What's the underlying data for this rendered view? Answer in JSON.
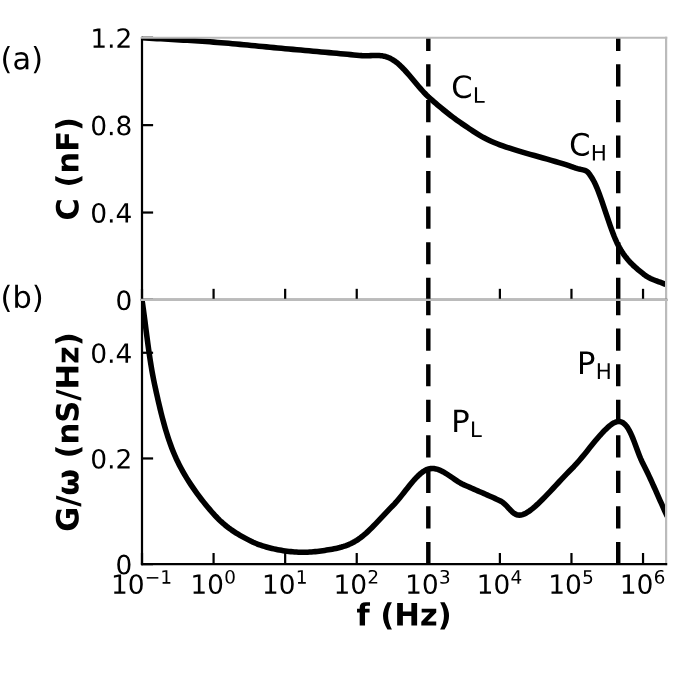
{
  "chart_data": [
    {
      "type": "line",
      "ylabel": "C (nF)",
      "log": "x",
      "xlim": [
        0.1,
        2100000
      ],
      "ylim": [
        0,
        1.2
      ],
      "yticks": [
        0,
        0.4,
        0.8,
        1.2
      ],
      "xticks": [
        {
          "value": 0.1,
          "label": null
        },
        {
          "value": 1,
          "label": null
        },
        {
          "value": 10,
          "label": null
        },
        {
          "value": 100,
          "label": null
        },
        {
          "value": 1000,
          "label": null
        },
        {
          "value": 10000,
          "label": null
        },
        {
          "value": 100000,
          "label": null
        },
        {
          "value": 1000000,
          "label": null
        }
      ],
      "tick_labels": "y",
      "grid": false,
      "legend": false,
      "line_style": "solid",
      "marker": "none",
      "series": [
        {
          "color": "#000000",
          "x": [
            0.1,
            1,
            10,
            100,
            316,
            1000,
            3162,
            10000,
            100000,
            200000,
            450000,
            1000000,
            2100000
          ],
          "values": [
            1.2,
            1.18,
            1.15,
            1.12,
            1.1,
            0.93,
            0.8,
            0.71,
            0.61,
            0.55,
            0.25,
            0.12,
            0.07
          ]
        }
      ],
      "ref_lines": [
        {
          "axis": "x",
          "value": 1000,
          "color": "#000000",
          "line_style": "dashed"
        },
        {
          "axis": "x",
          "value": 450000,
          "color": "#000000",
          "line_style": "dashed"
        }
      ],
      "annotations": [
        "(a)",
        "C$_{L}$",
        "C$_{H}$"
      ]
    },
    {
      "type": "line",
      "xlabel": "f (Hz)",
      "ylabel": "G/ω (nS/Hz)",
      "log": "x",
      "xlim": [
        0.1,
        2100000
      ],
      "ylim": [
        0,
        0.5
      ],
      "yticks": [
        0,
        0.2,
        0.4
      ],
      "xticks": [
        {
          "value": 0.1,
          "label": "10$^{−1}$"
        },
        {
          "value": 1,
          "label": "10$^{0}$"
        },
        {
          "value": 10,
          "label": "10$^{1}$"
        },
        {
          "value": 100,
          "label": "10$^{2}$"
        },
        {
          "value": 1000,
          "label": "10$^{3}$"
        },
        {
          "value": 10000,
          "label": "10$^{4}$"
        },
        {
          "value": 100000,
          "label": "10$^{5}$"
        },
        {
          "value": 1000000,
          "label": "10$^{6}$"
        }
      ],
      "grid": false,
      "legend": false,
      "line_style": "solid",
      "marker": "none",
      "series": [
        {
          "color": "#000000",
          "x": [
            0.1,
            0.15,
            0.3,
            1,
            3.16,
            10,
            31.6,
            100,
            316,
            1000,
            3162,
            10000,
            22000,
            100000,
            450000,
            1000000,
            2100000
          ],
          "values": [
            0.5,
            0.34,
            0.2,
            0.095,
            0.045,
            0.025,
            0.025,
            0.045,
            0.11,
            0.18,
            0.15,
            0.12,
            0.095,
            0.18,
            0.27,
            0.19,
            0.095
          ]
        }
      ],
      "ref_lines": [
        {
          "axis": "x",
          "value": 1000,
          "color": "#000000",
          "line_style": "dashed"
        },
        {
          "axis": "x",
          "value": 450000,
          "color": "#000000",
          "line_style": "dashed"
        }
      ],
      "annotations": [
        "(b)",
        "P$_{L}$",
        "P$_{H}$"
      ]
    }
  ]
}
